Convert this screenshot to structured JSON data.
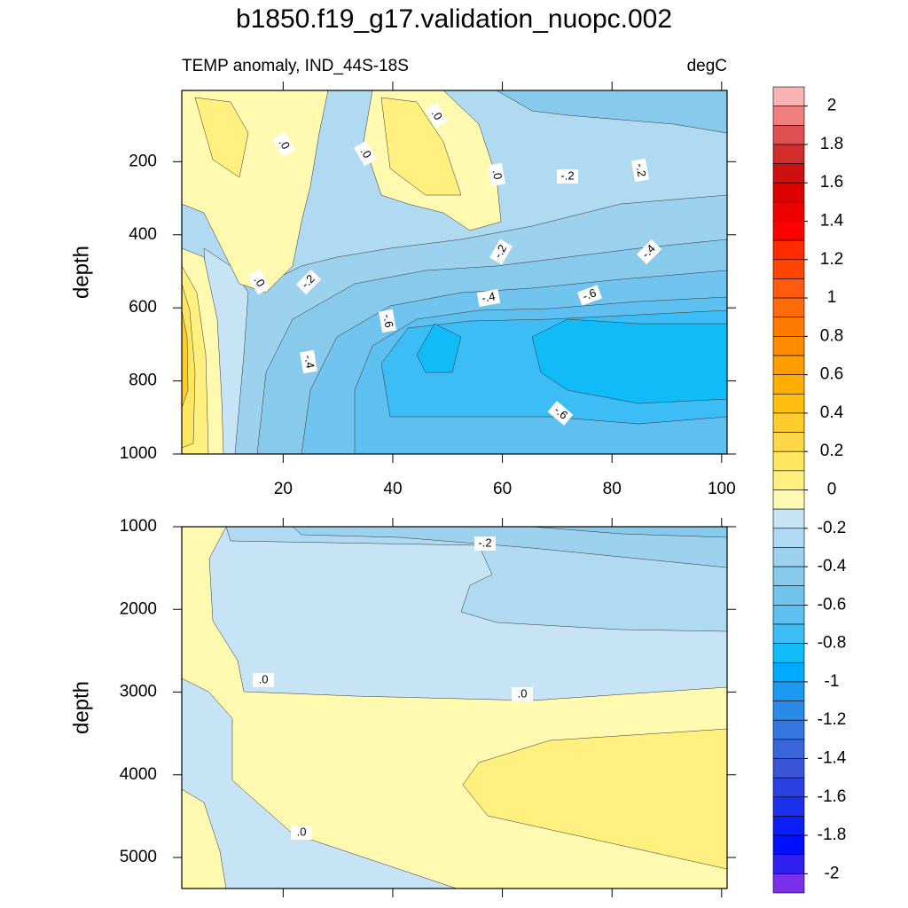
{
  "chart_data": [
    {
      "type": "contour",
      "title": "b1850.f19_g17.validation_nuopc.002",
      "subtitle_left": "TEMP anomaly, IND_44S-18S",
      "subtitle_right": "degC",
      "ylabel": "depth",
      "xlim": [
        1.5,
        101
      ],
      "xticks": [
        20,
        40,
        60,
        80,
        100
      ],
      "ylim": [
        5,
        1000
      ],
      "yticks": [
        200,
        400,
        600,
        800,
        1000
      ],
      "y_reversed": true,
      "contour_labels": [
        ".0",
        ".0",
        ".0",
        ".0",
        "-.2",
        "-.2",
        "-.2",
        "-.4",
        ".0",
        "-.2",
        "-.4",
        "-.6",
        "-.6",
        "-.4",
        "-.6"
      ],
      "colorbar": {
        "ticks": [
          2,
          1.8,
          1.6,
          1.4,
          1.2,
          1,
          0.8,
          0.6,
          0.4,
          0.2,
          0,
          -0.2,
          -0.4,
          -0.6,
          -0.8,
          -1,
          -1.2,
          -1.4,
          -1.6,
          -1.8,
          -2
        ],
        "colors": [
          "#f9b3b3",
          "#f08080",
          "#e05050",
          "#d22c2c",
          "#cc1010",
          "#dd0000",
          "#ee0000",
          "#ff0000",
          "#ff2a00",
          "#ff4500",
          "#ff5a10",
          "#ff6a0a",
          "#ff7a00",
          "#ff8c00",
          "#ff9c00",
          "#ffae00",
          "#ffbf10",
          "#ffcc30",
          "#ffd84a",
          "#ffe560",
          "#fff080",
          "#fffab0",
          "#c6e4f5",
          "#b0daf2",
          "#9dd2ef",
          "#88caec",
          "#70c4ee",
          "#5ec0f0",
          "#3cbdf5",
          "#10bbf8",
          "#00aaff",
          "#1b9af0",
          "#2a8ae8",
          "#3575e0",
          "#3a65da",
          "#3a55d8",
          "#2a40e0",
          "#1a30ea",
          "#0a1ef5",
          "#0010ff",
          "#3020f0",
          "#7a30e8"
        ]
      }
    },
    {
      "type": "contour",
      "ylabel": "depth",
      "xlim": [
        1.5,
        101
      ],
      "ylim": [
        1000,
        5375
      ],
      "yticks": [
        1000,
        2000,
        3000,
        4000,
        5000
      ],
      "y_reversed": true,
      "contour_labels": [
        "-.2",
        ".0",
        ".0",
        ".0"
      ]
    }
  ]
}
